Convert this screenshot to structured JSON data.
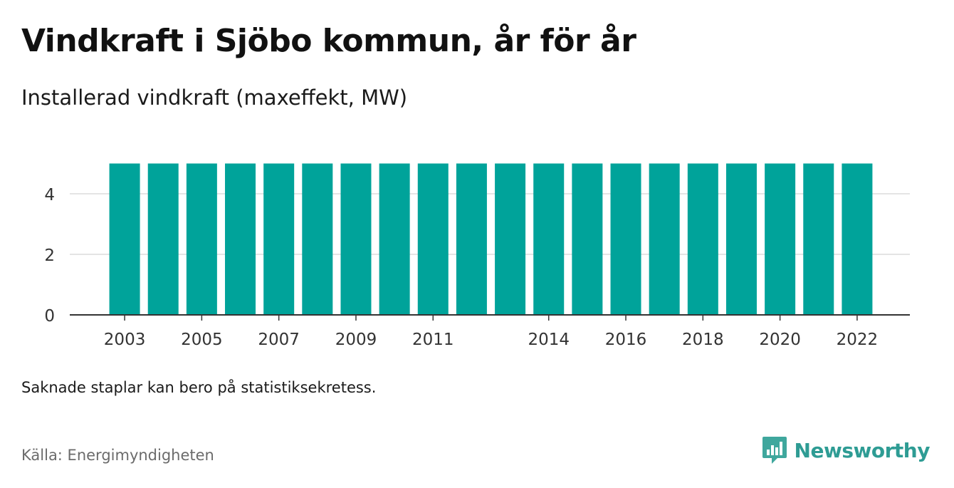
{
  "title": "Vindkraft i Sjöbo kommun, år för år",
  "subtitle": "Installerad vindkraft (maxeffekt, MW)",
  "note": "Saknade staplar kan bero på statistiksekretess.",
  "source": "Källa: Energimyndigheten",
  "brand": {
    "name": "Newsworthy",
    "icon": "newsworthy-logo-icon"
  },
  "colors": {
    "bar": "#00a39a",
    "grid": "#dcdcdc",
    "axis": "#333333",
    "brand": "#2e9c94"
  },
  "chart_data": {
    "type": "bar",
    "categories": [
      "2003",
      "2004",
      "2005",
      "2006",
      "2007",
      "2008",
      "2009",
      "2010",
      "2011",
      "2012",
      "2013",
      "2014",
      "2015",
      "2016",
      "2017",
      "2018",
      "2019",
      "2020",
      "2021",
      "2022"
    ],
    "values": [
      5,
      5,
      5,
      5,
      5,
      5,
      5,
      5,
      5,
      5,
      5,
      5,
      5,
      5,
      5,
      5,
      5,
      5,
      5,
      5
    ],
    "x_tick_labels": [
      "2003",
      "2005",
      "2007",
      "2009",
      "2011",
      "2014",
      "2016",
      "2018",
      "2020",
      "2022"
    ],
    "y_ticks": [
      0,
      2,
      4
    ],
    "ylim": [
      0,
      5
    ],
    "grid": true,
    "xlabel": "",
    "ylabel": ""
  }
}
